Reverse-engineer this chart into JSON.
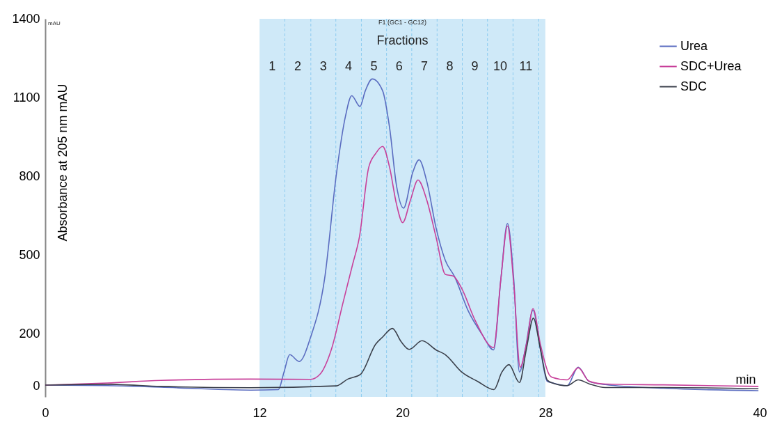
{
  "chart_data": {
    "type": "line",
    "xlabel": "min",
    "ylabel": "Absorbance at 205 nm mAU",
    "xlim": [
      0,
      40
    ],
    "xticks": [
      0,
      12,
      20,
      28,
      40
    ],
    "ylim": [
      -40,
      1400
    ],
    "yticks": [
      0,
      200,
      500,
      800,
      1100,
      1400
    ],
    "grid": false,
    "legend": "top right",
    "line_style": "solid",
    "series": [
      {
        "name": "Urea",
        "color": "#5a6cc0",
        "x": [
          0,
          3.47,
          6.47,
          11.49,
          13.05,
          13.37,
          13.69,
          14.22,
          14.86,
          15.64,
          16.3,
          16.81,
          17.16,
          17.62,
          17.92,
          18.31,
          18.89,
          19.28,
          19.67,
          20.06,
          20.58,
          20.93,
          21.36,
          21.88,
          22.4,
          22.92,
          23.7,
          24.47,
          25.1,
          25.51,
          25.88,
          26.23,
          26.55,
          26.88,
          27.31,
          27.72,
          28.11,
          28.37,
          29.22,
          29.84,
          30.45,
          31.36,
          34.61,
          39.93
        ],
        "values": [
          5,
          3,
          -3,
          -14,
          -12,
          55,
          121,
          95,
          188,
          409,
          808,
          1029,
          1107,
          1066,
          1126,
          1171,
          1126,
          985,
          763,
          679,
          816,
          863,
          781,
          604,
          480,
          418,
          285,
          197,
          139,
          409,
          620,
          409,
          55,
          143,
          290,
          143,
          19,
          14,
          3,
          73,
          19,
          7,
          -7,
          -16
        ]
      },
      {
        "name": "SDC+Urea",
        "color": "#c8409a",
        "x": [
          0,
          3.47,
          6.47,
          11.49,
          14.86,
          15.38,
          16.03,
          16.68,
          17.2,
          17.59,
          18.11,
          18.5,
          18.89,
          19.28,
          19.67,
          20.01,
          20.45,
          20.87,
          21.36,
          21.88,
          22.4,
          22.85,
          23.31,
          24.08,
          25.1,
          25.51,
          25.88,
          26.23,
          26.59,
          26.94,
          27.31,
          27.72,
          28.24,
          28.37,
          29.22,
          29.84,
          30.45,
          31.36,
          34.61,
          39.93
        ],
        "values": [
          5,
          13,
          23,
          28,
          27,
          46,
          143,
          321,
          462,
          569,
          834,
          887,
          914,
          834,
          693,
          624,
          710,
          786,
          710,
          569,
          427,
          420,
          374,
          250,
          148,
          409,
          611,
          391,
          73,
          161,
          296,
          161,
          42,
          35,
          25,
          71,
          20,
          9,
          6,
          0
        ]
      },
      {
        "name": "SDC",
        "color": "#3a3f4a",
        "x": [
          0,
          3.47,
          6.47,
          11.49,
          16.3,
          16.94,
          17.65,
          18.5,
          18.89,
          19.44,
          19.93,
          20.38,
          21.1,
          21.88,
          22.4,
          23.31,
          24.21,
          25.12,
          25.57,
          25.96,
          26.55,
          26.94,
          27.33,
          27.72,
          28.11,
          28.37,
          29.22,
          29.84,
          30.45,
          31.36,
          34.61,
          39.93
        ],
        "values": [
          5,
          8,
          0,
          -5,
          2,
          28,
          46,
          161,
          188,
          221,
          170,
          141,
          174,
          139,
          121,
          55,
          19,
          -12,
          55,
          83,
          15,
          143,
          260,
          143,
          24,
          14,
          3,
          25,
          10,
          -4,
          -4,
          -9
        ]
      }
    ],
    "bands": [
      {
        "axis": "x",
        "from": 12,
        "to": 28,
        "color": "#cfe9f8"
      }
    ],
    "ref_lines": [
      {
        "axis": "x",
        "value": 13.41,
        "line_style": "dashed",
        "color": "#8ccbf0"
      },
      {
        "axis": "x",
        "value": 14.87,
        "line_style": "dashed",
        "color": "#8ccbf0"
      },
      {
        "axis": "x",
        "value": 16.27,
        "line_style": "dashed",
        "color": "#8ccbf0"
      },
      {
        "axis": "x",
        "value": 17.7,
        "line_style": "dashed",
        "color": "#8ccbf0"
      },
      {
        "axis": "x",
        "value": 19.11,
        "line_style": "dashed",
        "color": "#8ccbf0"
      },
      {
        "axis": "x",
        "value": 20.52,
        "line_style": "dashed",
        "color": "#8ccbf0"
      },
      {
        "axis": "x",
        "value": 21.94,
        "line_style": "dashed",
        "color": "#8ccbf0"
      },
      {
        "axis": "x",
        "value": 23.35,
        "line_style": "dashed",
        "color": "#8ccbf0"
      },
      {
        "axis": "x",
        "value": 24.76,
        "line_style": "dashed",
        "color": "#8ccbf0"
      },
      {
        "axis": "x",
        "value": 26.19,
        "line_style": "dashed",
        "color": "#8ccbf0"
      },
      {
        "axis": "x",
        "value": 27.63,
        "line_style": "dashed",
        "color": "#8ccbf0"
      }
    ],
    "annotations": [
      "F1 (GC1 - GC12)",
      "mAU",
      "Fractions",
      "1",
      "2",
      "3",
      "4",
      "5",
      "6",
      "7",
      "8",
      "9",
      "10",
      "11"
    ]
  }
}
